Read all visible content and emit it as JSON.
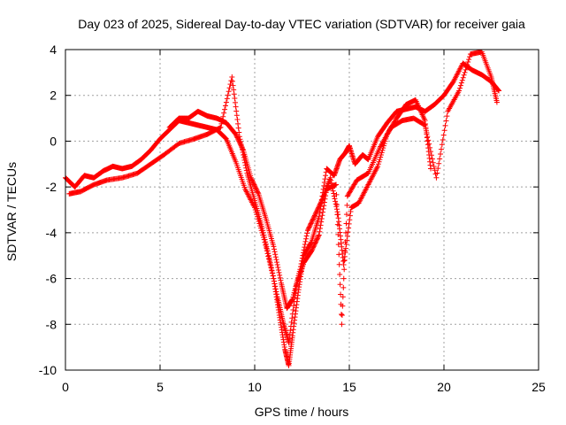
{
  "chart_data": {
    "type": "scatter",
    "title": "Day 023 of 2025, Sidereal Day-to-day VTEC variation (SDTVAR) for receiver gaia",
    "xlabel": "GPS time / hours",
    "ylabel": "SDTVAR / TECUs",
    "xlim": [
      0,
      25
    ],
    "ylim": [
      -10,
      4
    ],
    "xticks": [
      0,
      5,
      10,
      15,
      20,
      25
    ],
    "yticks": [
      -10,
      -8,
      -6,
      -4,
      -2,
      0,
      2,
      4
    ],
    "grid": true,
    "marker": "+",
    "color": "#ff0000",
    "series": [
      {
        "x": [
          0.0,
          0.5,
          1.0,
          1.5,
          2.0,
          2.5,
          3.0,
          3.5,
          4.0,
          4.5,
          5.0,
          5.5,
          6.0,
          6.5,
          7.0,
          7.5,
          8.0,
          8.5,
          9.0,
          9.5,
          10.0,
          10.5,
          11.0,
          11.3,
          11.6,
          11.8,
          12.0,
          12.3,
          12.6,
          13.0,
          13.4,
          13.8,
          14.2,
          14.5,
          14.8,
          15.0,
          15.3,
          15.7,
          16.0,
          16.5,
          17.0,
          17.5,
          18.0,
          18.5,
          19.0,
          19.5,
          20.0,
          20.5,
          21.0,
          21.5,
          22.0,
          22.5,
          22.9
        ],
        "y": [
          -1.6,
          -2.0,
          -1.5,
          -1.6,
          -1.3,
          -1.1,
          -1.2,
          -1.1,
          -0.8,
          -0.4,
          0.1,
          0.5,
          0.9,
          0.8,
          0.7,
          0.6,
          0.5,
          0.1,
          -0.9,
          -2.1,
          -2.9,
          -4.3,
          -6.0,
          -7.6,
          -9.1,
          -9.8,
          -8.5,
          -6.6,
          -5.0,
          -4.4,
          -3.3,
          -1.2,
          -1.5,
          -0.8,
          -0.5,
          -0.2,
          -1.0,
          -0.6,
          -0.8,
          0.2,
          0.8,
          1.3,
          1.4,
          1.5,
          1.3,
          1.6,
          2.0,
          2.6,
          3.4,
          3.1,
          2.9,
          2.6,
          2.2
        ]
      },
      {
        "x": [
          0.2,
          0.8,
          1.5,
          2.2,
          3.0,
          3.8,
          4.5,
          5.2,
          6.0,
          6.8,
          7.5,
          8.2,
          8.8,
          9.2,
          9.6,
          10.0,
          10.4,
          10.8,
          11.2,
          11.5,
          11.8,
          12.2,
          12.6,
          13.0,
          13.4,
          13.8,
          14.3,
          14.6,
          14.9,
          15.4,
          16.0,
          16.6,
          17.2,
          17.8,
          18.4,
          19.0,
          19.6,
          20.2,
          20.8,
          21.4,
          22.0,
          22.5,
          22.8
        ],
        "y": [
          -2.3,
          -2.2,
          -1.9,
          -1.7,
          -1.6,
          -1.4,
          -1.0,
          -0.6,
          -0.1,
          0.1,
          0.3,
          0.6,
          2.8,
          0.2,
          -1.4,
          -2.6,
          -3.8,
          -5.2,
          -6.8,
          -7.9,
          -8.8,
          -6.3,
          -5.3,
          -4.8,
          -4.1,
          -2.1,
          -1.9,
          -8.0,
          -2.4,
          -1.7,
          -1.4,
          -0.3,
          0.6,
          0.9,
          1.0,
          0.7,
          -1.6,
          1.3,
          2.2,
          3.8,
          3.9,
          2.8,
          1.7
        ]
      },
      {
        "x": [
          5.5,
          6.0,
          6.5,
          7.0,
          7.5,
          8.0,
          8.5,
          9.0,
          9.4,
          9.8,
          10.2,
          10.6,
          11.0,
          11.4,
          11.7,
          12.0,
          12.4,
          12.8,
          13.2,
          13.6,
          14.0,
          14.4,
          14.7,
          15.1,
          15.5,
          16.0,
          16.5,
          17.0,
          17.5,
          18.0,
          18.5,
          19.0,
          19.3
        ],
        "y": [
          0.6,
          1.0,
          1.0,
          1.3,
          1.1,
          1.0,
          0.8,
          0.3,
          -0.4,
          -1.6,
          -2.3,
          -3.4,
          -4.6,
          -6.2,
          -7.3,
          -6.9,
          -5.6,
          -3.9,
          -3.2,
          -2.5,
          -1.6,
          -3.2,
          -5.4,
          -2.9,
          -2.7,
          -1.9,
          -1.1,
          0.3,
          1.0,
          1.6,
          1.8,
          0.9,
          -1.2
        ]
      }
    ]
  }
}
